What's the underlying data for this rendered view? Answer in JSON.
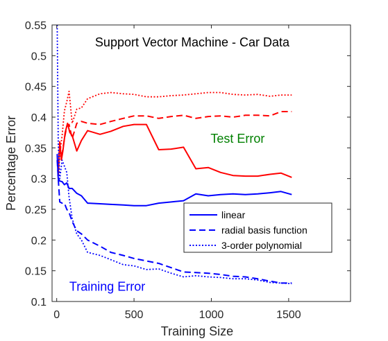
{
  "chart_data": {
    "type": "line",
    "title": "Support Vector Machine - Car Data",
    "xlabel": "Training Size",
    "ylabel": "Percentage Error",
    "xlim": [
      -30,
      1900
    ],
    "ylim": [
      0.1,
      0.55
    ],
    "xticks": [
      0,
      500,
      1000,
      1500
    ],
    "xtick_labels": [
      "0",
      "500",
      "1000",
      "1500"
    ],
    "yticks": [
      0.1,
      0.15,
      0.2,
      0.25,
      0.3,
      0.35,
      0.4,
      0.45,
      0.5,
      0.55
    ],
    "ytick_labels": [
      "0.1",
      "0.15",
      "0.2",
      "0.25",
      "0.3",
      "0.35",
      "0.4",
      "0.45",
      "0.5",
      "0.55"
    ],
    "grid": false,
    "legend": {
      "placement": "right-middle",
      "entries": [
        {
          "label": "linear",
          "style": "solid"
        },
        {
          "label": "radial basis function",
          "style": "dashed"
        },
        {
          "label": "3-order polynomial",
          "style": "dotted"
        }
      ]
    },
    "annotations": [
      {
        "text": "Test Error",
        "color": "#008000",
        "x": 1170,
        "y": 0.365
      },
      {
        "text": "Training Error",
        "color": "#0000ff",
        "x": 390,
        "y": 0.124
      }
    ],
    "series": [
      {
        "group": "test",
        "style": "solid",
        "color": "#ff0000",
        "x": [
          10,
          20,
          30,
          40,
          55,
          70,
          85,
          100,
          130,
          160,
          200,
          280,
          350,
          430,
          500,
          580,
          660,
          740,
          820,
          900,
          980,
          1060,
          1140,
          1220,
          1300,
          1380,
          1450,
          1520
        ],
        "y": [
          0.305,
          0.36,
          0.33,
          0.345,
          0.375,
          0.39,
          0.375,
          0.37,
          0.345,
          0.362,
          0.378,
          0.372,
          0.377,
          0.385,
          0.388,
          0.388,
          0.347,
          0.348,
          0.351,
          0.316,
          0.318,
          0.31,
          0.305,
          0.304,
          0.304,
          0.307,
          0.309,
          0.302
        ]
      },
      {
        "group": "test",
        "style": "dashed",
        "color": "#ff0000",
        "x": [
          10,
          20,
          35,
          50,
          65,
          80,
          100,
          130,
          160,
          200,
          280,
          350,
          430,
          500,
          580,
          660,
          740,
          820,
          900,
          980,
          1060,
          1140,
          1220,
          1300,
          1380,
          1450,
          1520
        ],
        "y": [
          0.32,
          0.355,
          0.34,
          0.365,
          0.385,
          0.388,
          0.365,
          0.39,
          0.393,
          0.39,
          0.388,
          0.393,
          0.398,
          0.402,
          0.402,
          0.398,
          0.401,
          0.403,
          0.398,
          0.401,
          0.402,
          0.4,
          0.403,
          0.403,
          0.402,
          0.409,
          0.409
        ]
      },
      {
        "group": "test",
        "style": "dotted",
        "color": "#ff0000",
        "x": [
          10,
          20,
          35,
          50,
          65,
          80,
          100,
          130,
          160,
          200,
          280,
          350,
          430,
          500,
          580,
          660,
          740,
          820,
          900,
          980,
          1060,
          1140,
          1220,
          1300,
          1380,
          1450,
          1520
        ],
        "y": [
          0.3,
          0.34,
          0.37,
          0.41,
          0.425,
          0.442,
          0.39,
          0.413,
          0.415,
          0.43,
          0.438,
          0.44,
          0.438,
          0.437,
          0.433,
          0.433,
          0.435,
          0.436,
          0.438,
          0.44,
          0.44,
          0.437,
          0.436,
          0.437,
          0.434,
          0.436,
          0.436
        ]
      },
      {
        "group": "train",
        "style": "solid",
        "color": "#0000ff",
        "x": [
          3,
          10,
          20,
          35,
          50,
          65,
          80,
          100,
          130,
          160,
          200,
          280,
          350,
          430,
          500,
          580,
          660,
          740,
          820,
          900,
          980,
          1060,
          1140,
          1220,
          1300,
          1380,
          1450,
          1520
        ],
        "y": [
          0.34,
          0.3,
          0.296,
          0.295,
          0.29,
          0.293,
          0.284,
          0.284,
          0.276,
          0.272,
          0.26,
          0.259,
          0.258,
          0.257,
          0.256,
          0.256,
          0.26,
          0.262,
          0.264,
          0.275,
          0.272,
          0.274,
          0.275,
          0.274,
          0.275,
          0.277,
          0.279,
          0.274
        ]
      },
      {
        "group": "train",
        "style": "dashed",
        "color": "#0000ff",
        "x": [
          3,
          10,
          20,
          35,
          50,
          65,
          80,
          100,
          130,
          160,
          200,
          280,
          350,
          430,
          500,
          580,
          660,
          740,
          820,
          900,
          980,
          1060,
          1140,
          1220,
          1300,
          1380,
          1450,
          1520
        ],
        "y": [
          0.33,
          0.3,
          0.262,
          0.26,
          0.26,
          0.25,
          0.245,
          0.23,
          0.215,
          0.21,
          0.2,
          0.19,
          0.18,
          0.175,
          0.17,
          0.166,
          0.162,
          0.155,
          0.148,
          0.147,
          0.146,
          0.144,
          0.141,
          0.14,
          0.137,
          0.133,
          0.13,
          0.13
        ]
      },
      {
        "group": "train",
        "style": "dotted",
        "color": "#0000ff",
        "x": [
          3,
          10,
          20,
          35,
          50,
          65,
          80,
          100,
          130,
          160,
          200,
          280,
          350,
          430,
          500,
          580,
          660,
          740,
          820,
          900,
          980,
          1060,
          1140,
          1220,
          1300,
          1380,
          1450,
          1520
        ],
        "y": [
          0.55,
          0.36,
          0.3,
          0.33,
          0.32,
          0.31,
          0.27,
          0.235,
          0.21,
          0.2,
          0.18,
          0.175,
          0.168,
          0.16,
          0.158,
          0.152,
          0.153,
          0.146,
          0.14,
          0.142,
          0.14,
          0.139,
          0.137,
          0.137,
          0.135,
          0.131,
          0.13,
          0.129
        ]
      }
    ]
  }
}
